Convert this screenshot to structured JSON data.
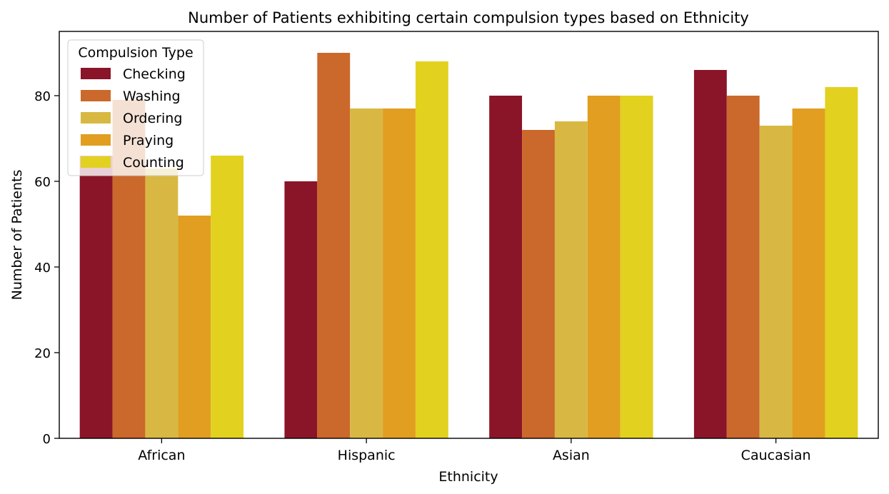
{
  "chart_data": {
    "type": "bar",
    "title": "Number of Patients exhibiting certain compulsion types based on Ethnicity",
    "xlabel": "Ethnicity",
    "ylabel": "Number of Patients",
    "categories": [
      "African",
      "Hispanic",
      "Asian",
      "Caucasian"
    ],
    "ylim": [
      0,
      95
    ],
    "yticks": [
      0,
      20,
      40,
      60,
      80
    ],
    "legend": {
      "title": "Compulsion Type",
      "placement": "top-left"
    },
    "grid": false,
    "series": [
      {
        "name": "Checking",
        "color": "#8a1428",
        "values": [
          66,
          60,
          80,
          86
        ]
      },
      {
        "name": "Washing",
        "color": "#cb682b",
        "values": [
          79,
          90,
          72,
          80
        ]
      },
      {
        "name": "Ordering",
        "color": "#d8b843",
        "values": [
          63,
          77,
          74,
          73
        ]
      },
      {
        "name": "Praying",
        "color": "#e19e20",
        "values": [
          52,
          77,
          80,
          77
        ]
      },
      {
        "name": "Counting",
        "color": "#e2d11f",
        "values": [
          66,
          88,
          80,
          82
        ]
      }
    ]
  }
}
